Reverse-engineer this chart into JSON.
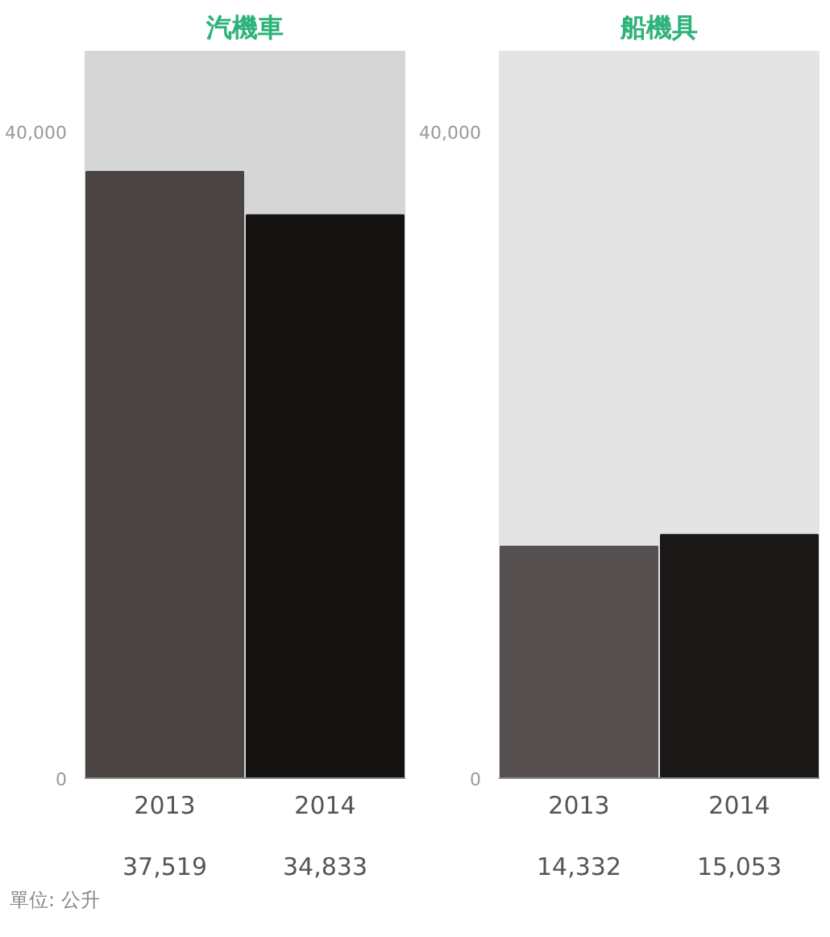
{
  "chart_data": [
    {
      "type": "bar",
      "title": "汽機車",
      "categories": [
        "2013",
        "2014"
      ],
      "values": [
        37519,
        34833
      ],
      "colors": [
        "#4a4443",
        "#151311"
      ],
      "value_labels": [
        "37,519",
        "34,833"
      ],
      "bands": [
        {
          "axis": "y",
          "from": 0,
          "to": 45000,
          "color": "#d6d6d6"
        }
      ],
      "ylim": [
        0,
        45000
      ],
      "yticks": [
        0,
        {
          "value": 40000,
          "label": "40,000"
        }
      ]
    },
    {
      "type": "bar",
      "title": "船機具",
      "categories": [
        "2013",
        "2014"
      ],
      "values": [
        14332,
        15053
      ],
      "colors": [
        "#565050",
        "#1a1817"
      ],
      "value_labels": [
        "14,332",
        "15,053"
      ],
      "bands": [
        {
          "axis": "y",
          "from": 0,
          "to": 45000,
          "color": "#e4e4e4"
        }
      ],
      "ylim": [
        0,
        45000
      ],
      "yticks": [
        0,
        {
          "value": 40000,
          "label": "40,000"
        }
      ],
      "annotations": [
        "單位: 公升"
      ]
    }
  ]
}
